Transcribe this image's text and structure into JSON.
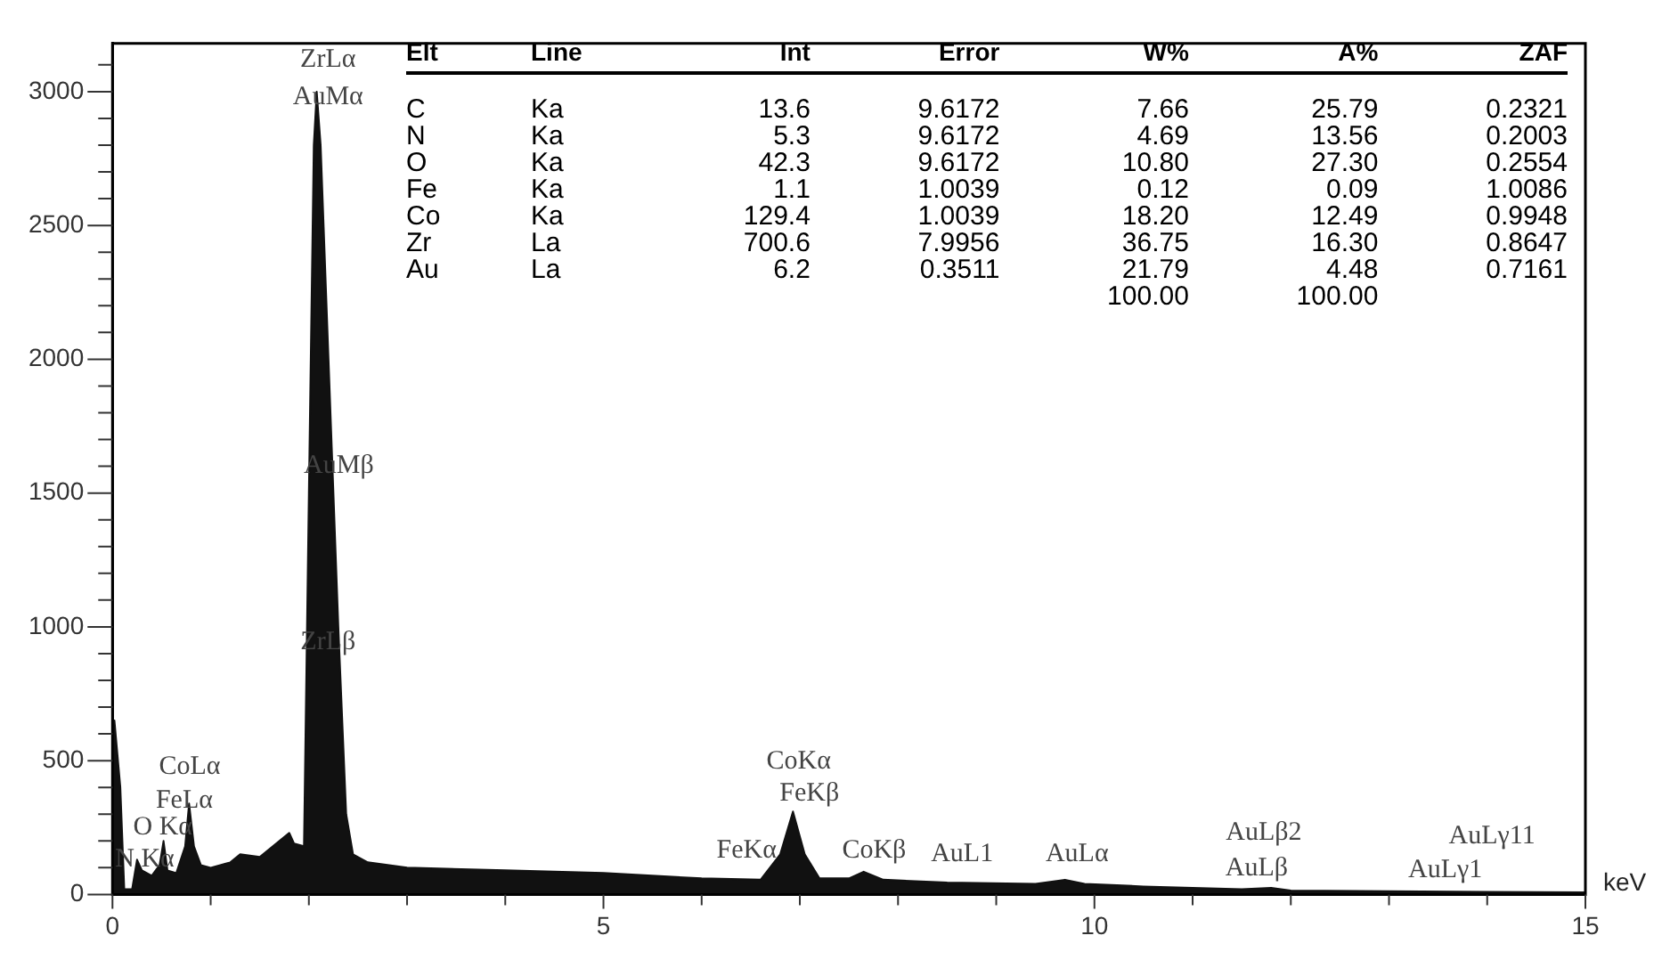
{
  "chart_data": {
    "type": "area",
    "xlabel": "keV",
    "x": [
      0,
      0.02,
      0.08,
      0.12,
      0.2,
      0.25,
      0.3,
      0.4,
      0.48,
      0.52,
      0.56,
      0.65,
      0.74,
      0.78,
      0.83,
      0.9,
      1.0,
      1.2,
      1.3,
      1.5,
      1.6,
      1.7,
      1.8,
      1.85,
      1.95,
      2.0,
      2.05,
      2.08,
      2.12,
      2.2,
      2.3,
      2.38,
      2.45,
      2.6,
      3,
      4,
      5,
      6,
      6.6,
      6.8,
      6.93,
      7.05,
      7.2,
      7.5,
      7.65,
      7.85,
      8.5,
      9.4,
      9.7,
      9.9,
      10.5,
      11.5,
      11.8,
      12,
      13,
      14,
      15
    ],
    "series": [
      {
        "color": "#111111",
        "values": [
          650,
          650,
          400,
          20,
          20,
          130,
          90,
          70,
          110,
          200,
          90,
          80,
          180,
          340,
          180,
          110,
          100,
          120,
          150,
          140,
          170,
          200,
          230,
          190,
          180,
          1500,
          2800,
          3000,
          2800,
          2000,
          1000,
          300,
          150,
          120,
          100,
          90,
          80,
          60,
          55,
          150,
          310,
          150,
          60,
          60,
          85,
          55,
          45,
          40,
          55,
          40,
          30,
          20,
          25,
          15,
          12,
          10,
          8
        ]
      }
    ],
    "xlim": [
      0,
      15
    ],
    "xticks": [
      0,
      {
        "value": 1,
        "label": null
      },
      {
        "value": 2,
        "label": null
      },
      {
        "value": 3,
        "label": null
      },
      {
        "value": 4,
        "label": null
      },
      5,
      {
        "value": 6,
        "label": null
      },
      {
        "value": 7,
        "label": null
      },
      {
        "value": 8,
        "label": null
      },
      {
        "value": 9,
        "label": null
      },
      10,
      {
        "value": 11,
        "label": null
      },
      {
        "value": 12,
        "label": null
      },
      {
        "value": 13,
        "label": null
      },
      {
        "value": 14,
        "label": null
      },
      15
    ],
    "ylim": [
      0,
      3180
    ],
    "yticks": [
      0,
      {
        "value": 100,
        "label": null
      },
      {
        "value": 200,
        "label": null
      },
      {
        "value": 300,
        "label": null
      },
      {
        "value": 400,
        "label": null
      },
      500,
      {
        "value": 600,
        "label": null
      },
      {
        "value": 700,
        "label": null
      },
      {
        "value": 800,
        "label": null
      },
      {
        "value": 900,
        "label": null
      },
      1000,
      {
        "value": 1100,
        "label": null
      },
      {
        "value": 1200,
        "label": null
      },
      {
        "value": 1300,
        "label": null
      },
      {
        "value": 1400,
        "label": null
      },
      1500,
      {
        "value": 1600,
        "label": null
      },
      {
        "value": 1700,
        "label": null
      },
      {
        "value": 1800,
        "label": null
      },
      {
        "value": 1900,
        "label": null
      },
      2000,
      {
        "value": 2100,
        "label": null
      },
      {
        "value": 2200,
        "label": null
      },
      {
        "value": 2300,
        "label": null
      },
      {
        "value": 2400,
        "label": null
      },
      2500,
      {
        "value": 2600,
        "label": null
      },
      {
        "value": 2700,
        "label": null
      },
      {
        "value": 2800,
        "label": null
      },
      {
        "value": 2900,
        "label": null
      },
      3000,
      {
        "value": 3100,
        "label": null
      }
    ],
    "legend": false,
    "annotations": [
      "ZrLα",
      "AuMα",
      "AuMβ",
      "ZrLβ",
      "CoLα",
      "FeLα",
      "O Kα",
      "N Kα",
      "CoKα",
      "FeKβ",
      "FeKα",
      "CoKβ",
      "AuL1",
      "AuLα",
      "AuLβ2",
      "AuLβ",
      "AuLγ1",
      "AuLγ11",
      "Elt\tLine\tInt\tError\tW%\tA%\tZAF",
      "C\tKa\t13.6\t9.6172\t7.66\t25.79\t0.2321",
      "N\tKa\t5.3\t9.6172\t4.69\t13.56\t0.2003",
      "O\tKa\t42.3\t9.6172\t10.80\t27.30\t0.2554",
      "Fe\tKa\t1.1\t1.0039\t0.12\t0.09\t1.0086",
      "Co\tKa\t129.4\t1.0039\t18.20\t12.49\t0.9948",
      "Zr\tLa\t700.6\t7.9956\t36.75\t16.30\t0.8647",
      "Au\tLa\t6.2\t0.3511\t21.79\t4.48\t0.7161",
      "\t\t\t\t100.00\t100.00\t"
    ]
  }
}
